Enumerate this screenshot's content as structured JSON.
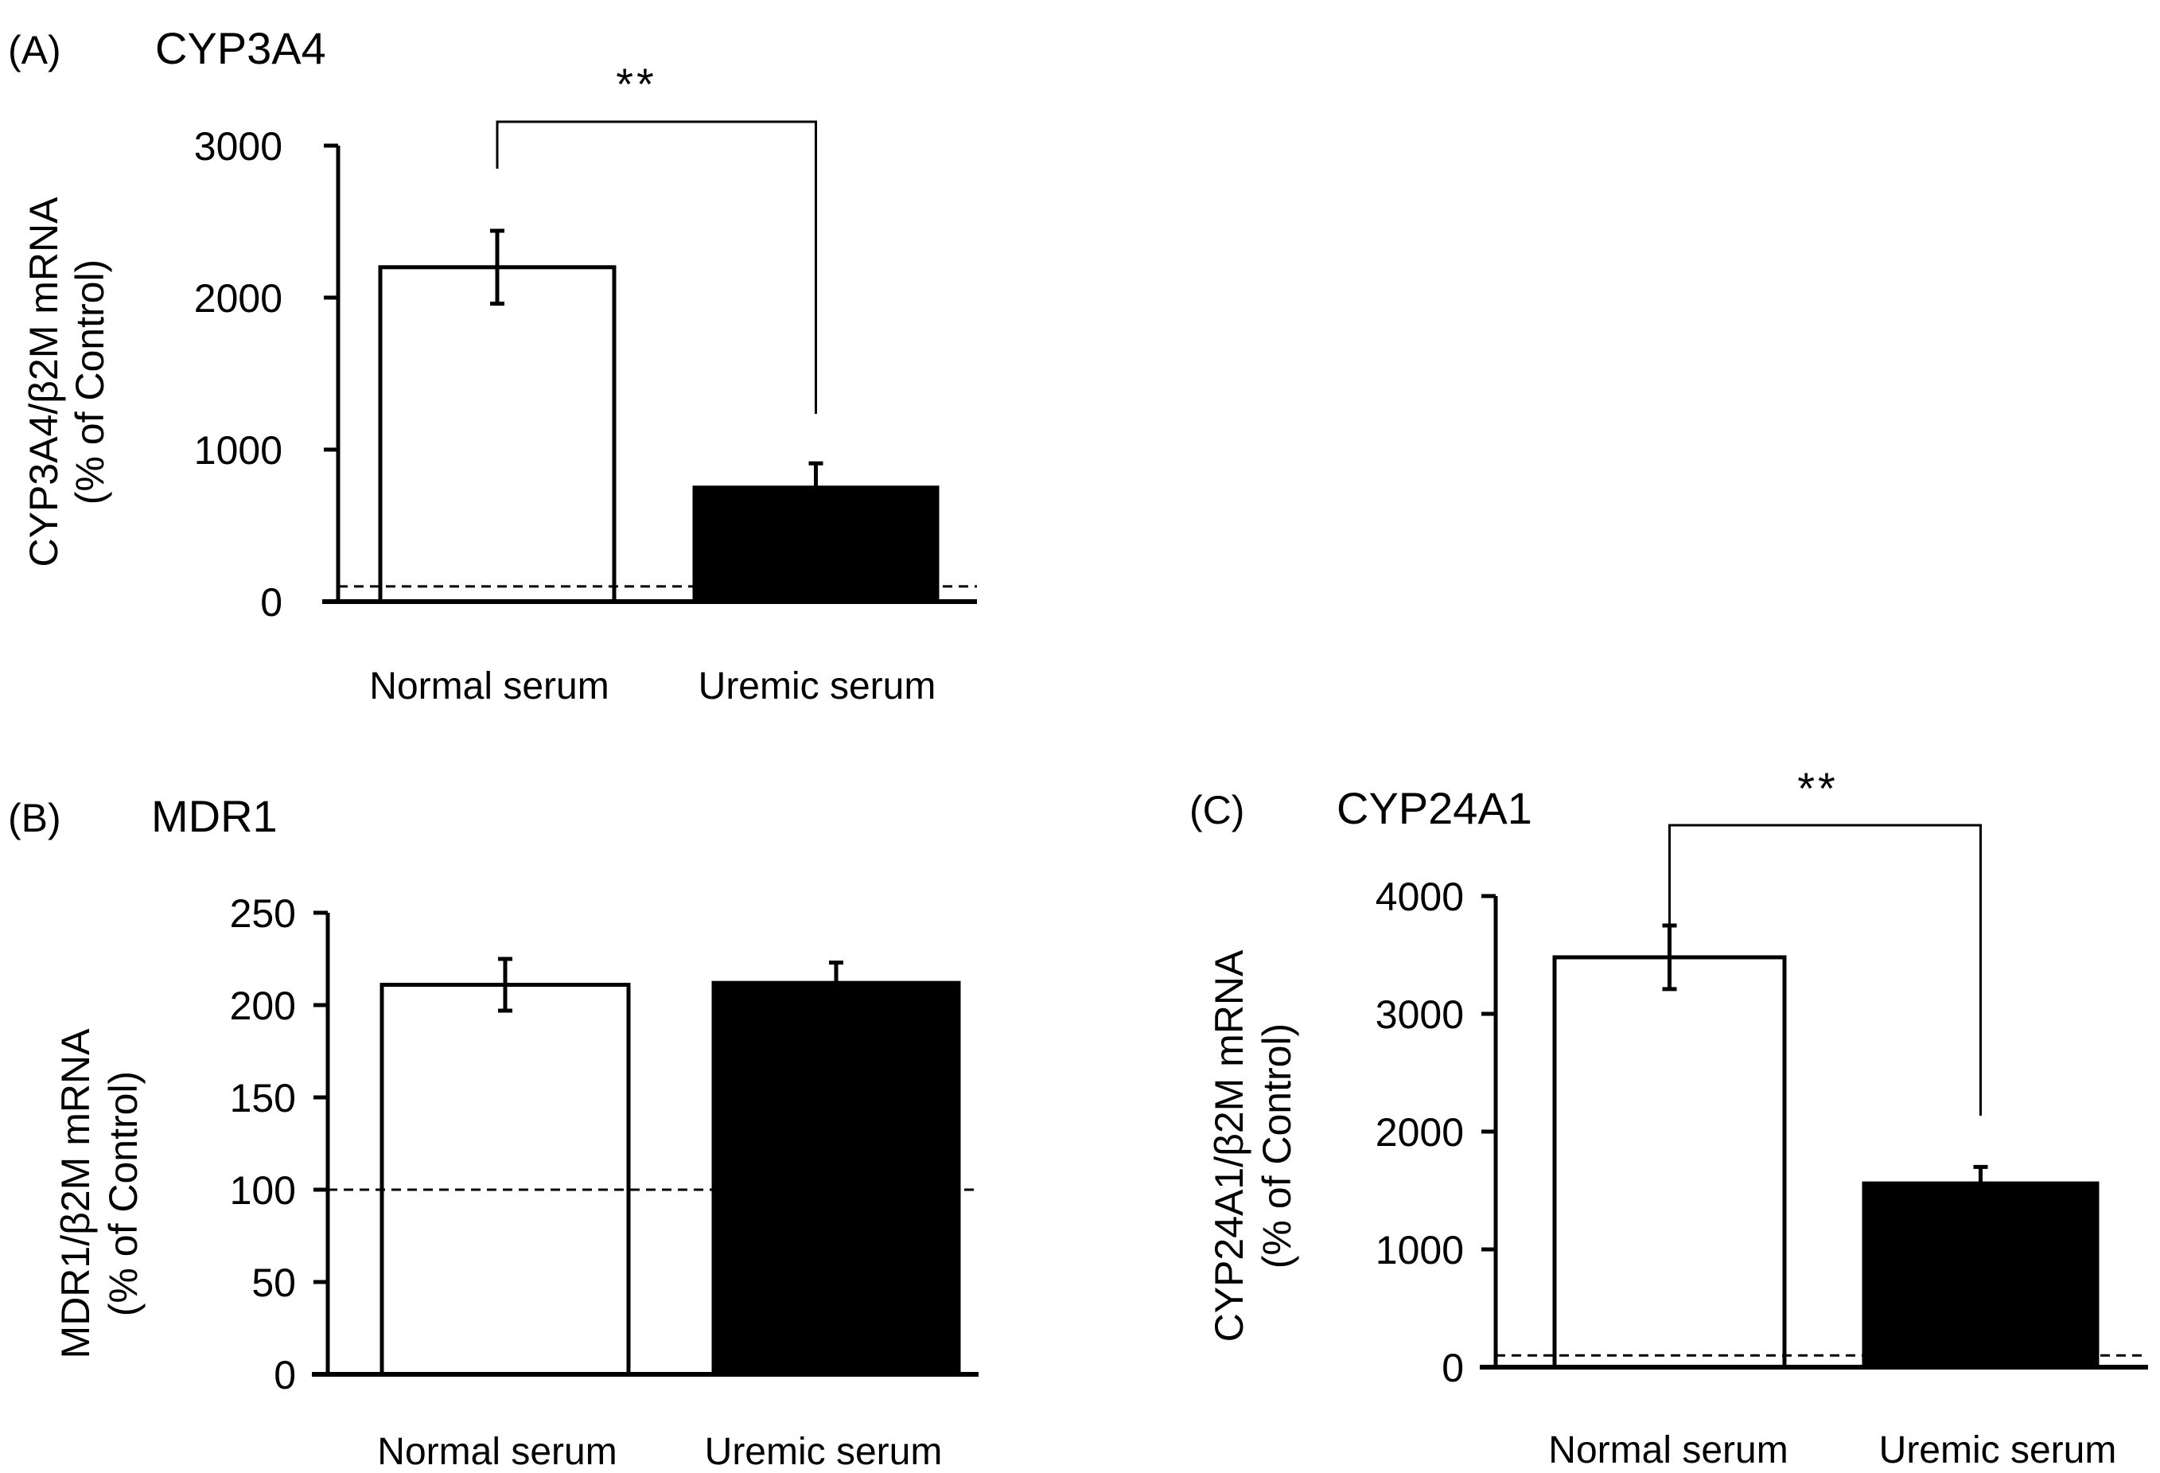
{
  "chart_data": [
    {
      "type": "bar",
      "panel_label": "(A)",
      "title": "CYP3A4",
      "ylabel_line1": "CYP3A4/β2M mRNA",
      "ylabel_line2": "(% of Control)",
      "categories": [
        "Normal serum",
        "Uremic serum"
      ],
      "values": [
        2200,
        750
      ],
      "errors": [
        240,
        160
      ],
      "bar_colors": [
        "#ffffff",
        "#000000"
      ],
      "ylim": [
        0,
        3000
      ],
      "yticks": [
        "0",
        "1000",
        "2000",
        "3000"
      ],
      "control_line": 100,
      "significance": "**"
    },
    {
      "type": "bar",
      "panel_label": "(B)",
      "title": "MDR1",
      "ylabel_line1": "MDR1/β2M mRNA",
      "ylabel_line2": "(% of Control)",
      "categories": [
        "Normal serum",
        "Uremic serum"
      ],
      "values": [
        211,
        212
      ],
      "errors": [
        14,
        11
      ],
      "bar_colors": [
        "#ffffff",
        "#000000"
      ],
      "ylim": [
        0,
        250
      ],
      "yticks": [
        "0",
        "50",
        "100",
        "150",
        "200",
        "250"
      ],
      "control_line": 100,
      "significance": ""
    },
    {
      "type": "bar",
      "panel_label": "(C)",
      "title": "CYP24A1",
      "ylabel_line1": "CYP24A1/β2M mRNA",
      "ylabel_line2": "(% of Control)",
      "categories": [
        "Normal serum",
        "Uremic serum"
      ],
      "values": [
        3480,
        1560
      ],
      "errors": [
        270,
        140
      ],
      "bar_colors": [
        "#ffffff",
        "#000000"
      ],
      "ylim": [
        0,
        4000
      ],
      "yticks": [
        "0",
        "1000",
        "2000",
        "3000",
        "4000"
      ],
      "control_line": 100,
      "significance": "**"
    }
  ]
}
